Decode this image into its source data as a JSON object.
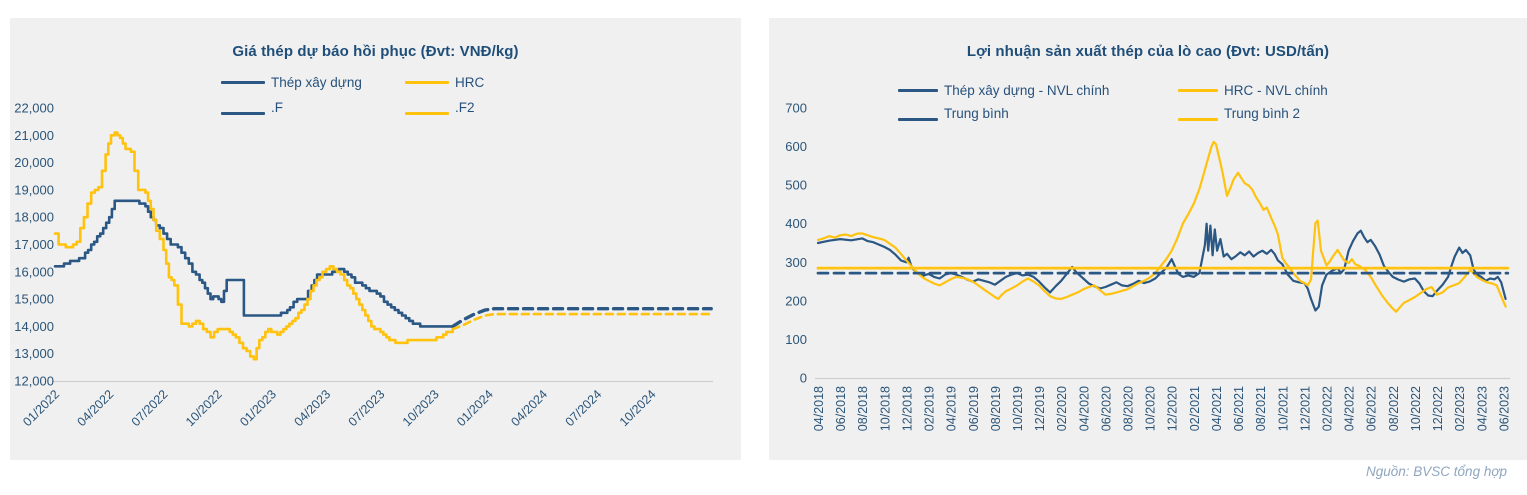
{
  "source_note": "Nguồn: BVSC tổng hợp",
  "colors": {
    "blue": "#2A5783",
    "yellow": "#FFC20E",
    "title_text": "#1F4E79",
    "tick_text": "#2B5579",
    "axis_line": "#CFCFCF",
    "panel_bg": "#F0F0F0",
    "source_text": "#8FA6C0"
  },
  "chart_data": [
    {
      "type": "line",
      "title": "Giá thép dự báo hồi phục (Đvt: VNĐ/kg)",
      "ylabel": "VNĐ/kg",
      "xlim": [
        0,
        36.4
      ],
      "ylim": [
        12000,
        22000
      ],
      "grid": "bottom-axis-only",
      "legend_position": "top",
      "y_tick_values": [
        12000,
        13000,
        14000,
        15000,
        16000,
        17000,
        18000,
        19000,
        20000,
        21000,
        22000
      ],
      "y_tick_labels": [
        "12,000",
        "13,000",
        "14,000",
        "15,000",
        "16,000",
        "17,000",
        "18,000",
        "19,000",
        "20,000",
        "21,000",
        "22,000"
      ],
      "x_tick_values": [
        0,
        3,
        6,
        9,
        12,
        15,
        18,
        21,
        24,
        27,
        30,
        33
      ],
      "x_tick_labels": [
        "01/2022",
        "04/2022",
        "07/2022",
        "10/2022",
        "01/2023",
        "04/2023",
        "07/2023",
        "10/2023",
        "01/2024",
        "04/2024",
        "07/2024",
        "10/2024"
      ],
      "series": [
        {
          "id": "thep-xay-dung",
          "name": "Thép xây dựng",
          "color_key": "blue",
          "width": 2.6,
          "dash": null,
          "step": 100,
          "x": [
            0,
            0.5,
            1,
            1.5,
            2,
            2.5,
            3,
            3.3,
            4.5,
            5,
            5.3,
            5.6,
            6,
            6.4,
            6.8,
            7.2,
            7.6,
            8,
            8.3,
            8.6,
            8.9,
            9.2,
            9.5,
            10.2,
            10.45,
            12.3,
            12.7,
            13,
            13.4,
            13.8,
            14.2,
            14.5,
            15,
            15.5,
            15.8,
            16.2,
            16.6,
            17,
            17.4,
            17.8,
            18.2,
            18.6,
            19,
            19.4,
            19.8,
            20.2,
            21.5,
            22
          ],
          "y": [
            16200,
            16250,
            16400,
            16500,
            17000,
            17400,
            18000,
            18600,
            18600,
            18400,
            18000,
            17700,
            17400,
            17000,
            16900,
            16500,
            16000,
            15700,
            15400,
            15000,
            15100,
            14900,
            15700,
            15700,
            14400,
            14400,
            14500,
            14700,
            15000,
            15000,
            15500,
            15900,
            15900,
            16000,
            16100,
            15900,
            15600,
            15500,
            15300,
            15200,
            14900,
            14700,
            14500,
            14300,
            14100,
            14000,
            14000,
            14000
          ]
        },
        {
          "id": "hrc",
          "name": "HRC",
          "color_key": "yellow",
          "width": 2.6,
          "dash": null,
          "step": 100,
          "x": [
            0,
            0.2,
            0.8,
            1.2,
            1.6,
            2,
            2.4,
            2.8,
            3.1,
            3.3,
            3.6,
            3.9,
            4.2,
            4.6,
            5,
            5.3,
            5.6,
            6,
            6.3,
            6.6,
            7,
            7.4,
            7.8,
            8.2,
            8.6,
            9,
            9.5,
            10,
            10.4,
            10.8,
            11,
            11.3,
            11.8,
            12.3,
            12.8,
            13.3,
            13.8,
            14.3,
            14.8,
            15.2,
            15.6,
            16,
            16.5,
            17,
            17.5,
            18,
            18.5,
            19,
            19.5,
            20,
            20.7,
            21.3,
            22
          ],
          "y": [
            17400,
            17000,
            16900,
            17100,
            18000,
            18900,
            19100,
            20300,
            21000,
            21100,
            20900,
            20500,
            20400,
            19000,
            18900,
            18300,
            17500,
            16800,
            15800,
            15500,
            14100,
            14000,
            14200,
            13900,
            13600,
            13900,
            13850,
            13600,
            13200,
            12900,
            12800,
            13500,
            13900,
            13700,
            14000,
            14300,
            14800,
            15500,
            16000,
            16200,
            16000,
            15700,
            15200,
            14600,
            14000,
            13800,
            13500,
            13400,
            13450,
            13500,
            13450,
            13600,
            13900
          ]
        },
        {
          "id": "f",
          "name": ".F",
          "color_key": "blue",
          "width": 3.4,
          "dash": [
            9,
            6
          ],
          "step": null,
          "x": [
            22,
            22.6,
            23.2,
            23.8,
            24.3,
            36.3
          ],
          "y": [
            14000,
            14250,
            14450,
            14600,
            14650,
            14650
          ]
        },
        {
          "id": "f2",
          "name": ".F2",
          "color_key": "yellow",
          "width": 2.6,
          "dash": [
            7,
            5
          ],
          "step": null,
          "x": [
            22,
            22.6,
            23.2,
            23.8,
            24.3,
            36.3
          ],
          "y": [
            13900,
            14050,
            14250,
            14400,
            14450,
            14450
          ]
        }
      ]
    },
    {
      "type": "line",
      "title": "Lợi nhuận sản xuất thép của lò cao (Đvt: USD/tấn)",
      "ylabel": "USD/tấn",
      "xlim": [
        0,
        62.6
      ],
      "ylim": [
        0,
        700
      ],
      "grid": "bottom-axis-only",
      "legend_position": "top",
      "y_tick_values": [
        0,
        100,
        200,
        300,
        400,
        500,
        600,
        700
      ],
      "y_tick_labels": [
        "0",
        "100",
        "200",
        "300",
        "400",
        "500",
        "600",
        "700"
      ],
      "x_tick_values": [
        0,
        2,
        4,
        6,
        8,
        10,
        12,
        14,
        16,
        18,
        20,
        22,
        24,
        26,
        28,
        30,
        32,
        34,
        36,
        38,
        40,
        42,
        44,
        46,
        48,
        50,
        52,
        54,
        56,
        58,
        60,
        62
      ],
      "x_tick_labels": [
        "04/2018",
        "06/2018",
        "08/2018",
        "10/2018",
        "12/2018",
        "02/2019",
        "04/2019",
        "06/2019",
        "08/2019",
        "10/2019",
        "12/2019",
        "02/2020",
        "04/2020",
        "06/2020",
        "08/2020",
        "10/2020",
        "12/2020",
        "02/2021",
        "04/2021",
        "06/2021",
        "08/2021",
        "10/2021",
        "12/2021",
        "02/2022",
        "04/2022",
        "06/2022",
        "08/2022",
        "10/2022",
        "12/2022",
        "02/2023",
        "04/2023",
        "06/2023"
      ],
      "series": [
        {
          "id": "thep-xay-dung-nvl-chinh",
          "name": "Thép xây dựng - NVL chính",
          "color_key": "blue",
          "width": 2.2,
          "dash": null,
          "step": null,
          "x": [
            0,
            1,
            2,
            3,
            4,
            4.5,
            5,
            6,
            6.5,
            7,
            7.5,
            8,
            8.2,
            8.5,
            9,
            9.5,
            10,
            10.5,
            11,
            11.5,
            12,
            12.5,
            13,
            13.5,
            14,
            14.5,
            15,
            15.5,
            16,
            16.5,
            17,
            17.5,
            18,
            18.5,
            19,
            19.5,
            20,
            20.5,
            21,
            21.5,
            22,
            22.5,
            23,
            23.3,
            23.6,
            24,
            24.5,
            25,
            25.5,
            26,
            26.5,
            27,
            27.5,
            28,
            28.5,
            29,
            29.5,
            30,
            30.5,
            31,
            31.5,
            32,
            32.3,
            32.6,
            33,
            33.5,
            34,
            34.5,
            35,
            35.15,
            35.3,
            35.5,
            35.7,
            35.9,
            36.1,
            36.4,
            36.7,
            37,
            37.4,
            37.8,
            38.2,
            38.6,
            39,
            39.4,
            39.8,
            40.2,
            40.6,
            41,
            41.3,
            41.6,
            42,
            42.5,
            43,
            43.5,
            44,
            44.3,
            44.6,
            45,
            45.3,
            45.6,
            46,
            46.5,
            47,
            47.3,
            47.6,
            48,
            48.4,
            48.8,
            49.1,
            49.4,
            49.7,
            50,
            50.4,
            50.8,
            51.2,
            51.6,
            52,
            52.5,
            53,
            53.5,
            54,
            54.4,
            54.8,
            55.2,
            55.6,
            56,
            56.5,
            57,
            57.3,
            57.6,
            58,
            58.3,
            58.6,
            59,
            59.3,
            59.6,
            60,
            60.4,
            60.8,
            61.2,
            61.5,
            61.8,
            62.2
          ],
          "y": [
            350,
            356,
            360,
            357,
            362,
            355,
            352,
            340,
            332,
            320,
            305,
            300,
            312,
            285,
            272,
            265,
            270,
            262,
            258,
            268,
            272,
            268,
            262,
            255,
            250,
            256,
            252,
            248,
            242,
            252,
            262,
            268,
            272,
            266,
            268,
            262,
            250,
            235,
            222,
            238,
            252,
            270,
            288,
            276,
            268,
            258,
            245,
            238,
            232,
            236,
            242,
            248,
            240,
            238,
            244,
            252,
            246,
            250,
            258,
            272,
            285,
            308,
            288,
            270,
            262,
            266,
            262,
            272,
            345,
            400,
            330,
            395,
            318,
            385,
            330,
            360,
            315,
            322,
            308,
            316,
            326,
            318,
            328,
            315,
            324,
            330,
            322,
            332,
            322,
            305,
            295,
            268,
            252,
            248,
            246,
            232,
            205,
            175,
            185,
            240,
            268,
            278,
            285,
            272,
            282,
            330,
            355,
            375,
            382,
            365,
            352,
            358,
            342,
            320,
            290,
            275,
            262,
            255,
            250,
            256,
            258,
            245,
            225,
            214,
            212,
            226,
            242,
            262,
            290,
            315,
            338,
            324,
            332,
            318,
            282,
            268,
            262,
            252,
            258,
            256,
            262,
            248,
            205
          ]
        },
        {
          "id": "hrc-nvl-chinh",
          "name": "HRC - NVL chính",
          "color_key": "yellow",
          "width": 2.2,
          "dash": null,
          "step": null,
          "x": [
            0,
            0.5,
            1,
            1.5,
            2,
            2.5,
            3,
            3.5,
            4,
            4.5,
            5,
            5.5,
            6,
            6.5,
            7,
            7.5,
            8,
            8.5,
            9,
            9.5,
            10,
            10.5,
            11,
            11.5,
            12,
            12.5,
            13,
            13.5,
            14,
            14.5,
            15,
            15.5,
            16,
            16.3,
            16.6,
            17,
            17.5,
            18,
            18.5,
            19,
            19.5,
            20,
            20.5,
            21,
            21.5,
            22,
            22.5,
            23,
            23.5,
            24,
            24.5,
            25,
            25.5,
            26,
            26.5,
            27,
            27.5,
            28,
            28.5,
            29,
            29.5,
            30,
            30.5,
            31,
            31.5,
            32,
            32.5,
            33,
            33.5,
            34,
            34.5,
            35,
            35.3,
            35.6,
            35.8,
            36,
            36.3,
            36.6,
            37,
            37.3,
            37.6,
            38,
            38.3,
            38.6,
            39,
            39.3,
            39.6,
            40,
            40.3,
            40.6,
            41,
            41.3,
            41.6,
            42,
            42.3,
            42.6,
            43,
            43.3,
            43.6,
            44,
            44.3,
            44.6,
            45,
            45.2,
            45.5,
            46,
            46.3,
            46.6,
            47,
            47.3,
            47.6,
            48,
            48.3,
            48.6,
            49,
            49.5,
            50,
            50.5,
            51,
            51.5,
            52,
            52.3,
            52.6,
            53,
            53.5,
            54,
            54.5,
            55,
            55.5,
            56,
            56.5,
            57,
            57.5,
            58,
            58.5,
            59,
            59.3,
            59.6,
            60,
            60.5,
            61,
            61.4,
            61.8,
            62.2
          ],
          "y": [
            358,
            362,
            368,
            364,
            370,
            372,
            368,
            374,
            375,
            370,
            365,
            362,
            358,
            348,
            338,
            322,
            305,
            288,
            272,
            260,
            252,
            245,
            240,
            248,
            256,
            262,
            260,
            256,
            250,
            240,
            230,
            220,
            210,
            205,
            215,
            225,
            232,
            240,
            250,
            258,
            250,
            240,
            225,
            212,
            206,
            205,
            210,
            216,
            222,
            230,
            236,
            240,
            228,
            216,
            218,
            222,
            226,
            230,
            238,
            246,
            252,
            260,
            272,
            290,
            308,
            330,
            362,
            400,
            425,
            452,
            490,
            540,
            570,
            600,
            612,
            606,
            570,
            532,
            472,
            492,
            515,
            532,
            518,
            505,
            498,
            488,
            470,
            452,
            436,
            442,
            415,
            396,
            372,
            312,
            298,
            288,
            272,
            262,
            252,
            246,
            240,
            255,
            402,
            408,
            330,
            292,
            302,
            316,
            332,
            318,
            305,
            298,
            308,
            295,
            290,
            280,
            262,
            238,
            215,
            196,
            180,
            172,
            182,
            195,
            202,
            210,
            220,
            230,
            236,
            216,
            222,
            235,
            240,
            246,
            262,
            280,
            272,
            262,
            255,
            248,
            245,
            240,
            212,
            185
          ]
        },
        {
          "id": "trung-binh",
          "name": "Trung bình",
          "color_key": "blue",
          "width": 2.8,
          "dash": [
            10,
            6
          ],
          "step": null,
          "x": [
            0,
            62.4
          ],
          "y": [
            272,
            272
          ]
        },
        {
          "id": "trung-binh-2",
          "name": "Trung bình 2",
          "color_key": "yellow",
          "width": 2.8,
          "dash": null,
          "step": null,
          "x": [
            0,
            62.4
          ],
          "y": [
            285,
            285
          ]
        }
      ]
    }
  ]
}
